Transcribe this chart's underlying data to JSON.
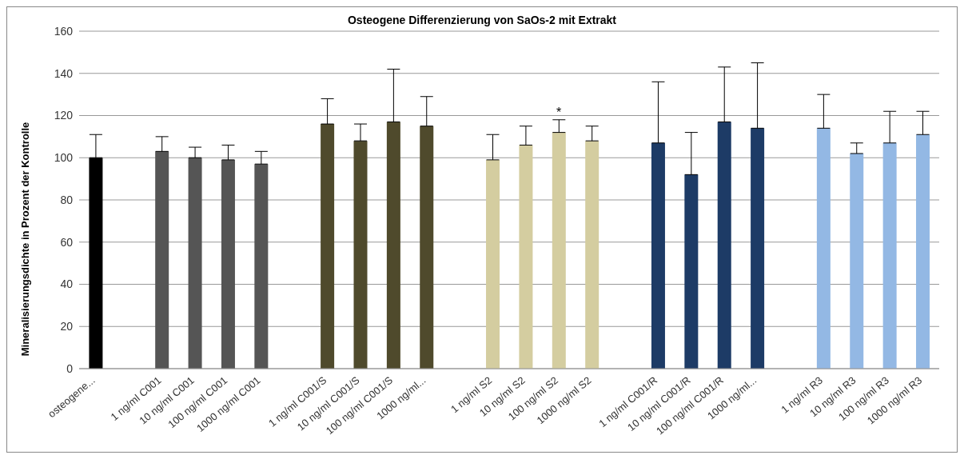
{
  "chart_data": {
    "type": "bar",
    "title": "Osteogene Differenzierung von  SaOs-2 mit Extrakt",
    "ylabel": "Mineralisierungsdichte in Prozent der Kontrolle",
    "categories": [
      "osteogene...",
      null,
      "1 ng/ml C001",
      "10 ng/ml C001",
      "100 ng/ml C001",
      "1000 ng/ml C001",
      null,
      "1 ng/ml C001/S",
      "10 ng/ml C001/S",
      "100 ng/ml C001/S",
      "1000 ng/ml...",
      null,
      "1 ng/ml S2",
      "10 ng/ml S2",
      "100 ng/ml S2",
      "1000 ng/ml S2",
      null,
      "1 ng/ml C001/R",
      "10 ng/ml C001/R",
      "100 ng/ml C001/R",
      "1000 ng/ml...",
      null,
      "1 ng/ml R3",
      "10 ng/ml R3",
      "100 ng/ml R3",
      "1000 ng/ml R3"
    ],
    "values": [
      100,
      null,
      103,
      100,
      99,
      97,
      null,
      116,
      108,
      117,
      115,
      null,
      99,
      106,
      112,
      108,
      null,
      107,
      92,
      117,
      114,
      null,
      114,
      102,
      107,
      111
    ],
    "errors": [
      [
        100,
        111
      ],
      null,
      [
        103,
        110
      ],
      [
        100,
        105
      ],
      [
        99,
        106
      ],
      [
        97,
        103
      ],
      null,
      [
        116,
        128
      ],
      [
        108,
        116
      ],
      [
        117,
        142
      ],
      [
        115,
        129
      ],
      null,
      [
        99,
        111
      ],
      [
        106,
        115
      ],
      [
        112,
        118
      ],
      [
        108,
        115
      ],
      null,
      [
        107,
        136
      ],
      [
        92,
        112
      ],
      [
        117,
        143
      ],
      [
        114,
        145
      ],
      null,
      [
        114,
        130
      ],
      [
        102,
        107
      ],
      [
        107,
        122
      ],
      [
        111,
        122
      ]
    ],
    "colors": [
      "#000000",
      null,
      "#555555",
      "#555555",
      "#555555",
      "#555555",
      null,
      "#4f4a2c",
      "#4f4a2c",
      "#4f4a2c",
      "#4f4a2c",
      null,
      "#d4cda0",
      "#d4cda0",
      "#d4cda0",
      "#d4cda0",
      null,
      "#1d3b66",
      "#1d3b66",
      "#1d3b66",
      "#1d3b66",
      null,
      "#93b8e4",
      "#93b8e4",
      "#93b8e4",
      "#93b8e4"
    ],
    "ylim": [
      0,
      160
    ],
    "yticks": [
      0,
      20,
      40,
      60,
      80,
      100,
      120,
      140,
      160
    ],
    "grid": "y",
    "legend": false,
    "annotations": [
      {
        "text": "*",
        "x": "100 ng/ml S2",
        "y": 118
      }
    ]
  }
}
